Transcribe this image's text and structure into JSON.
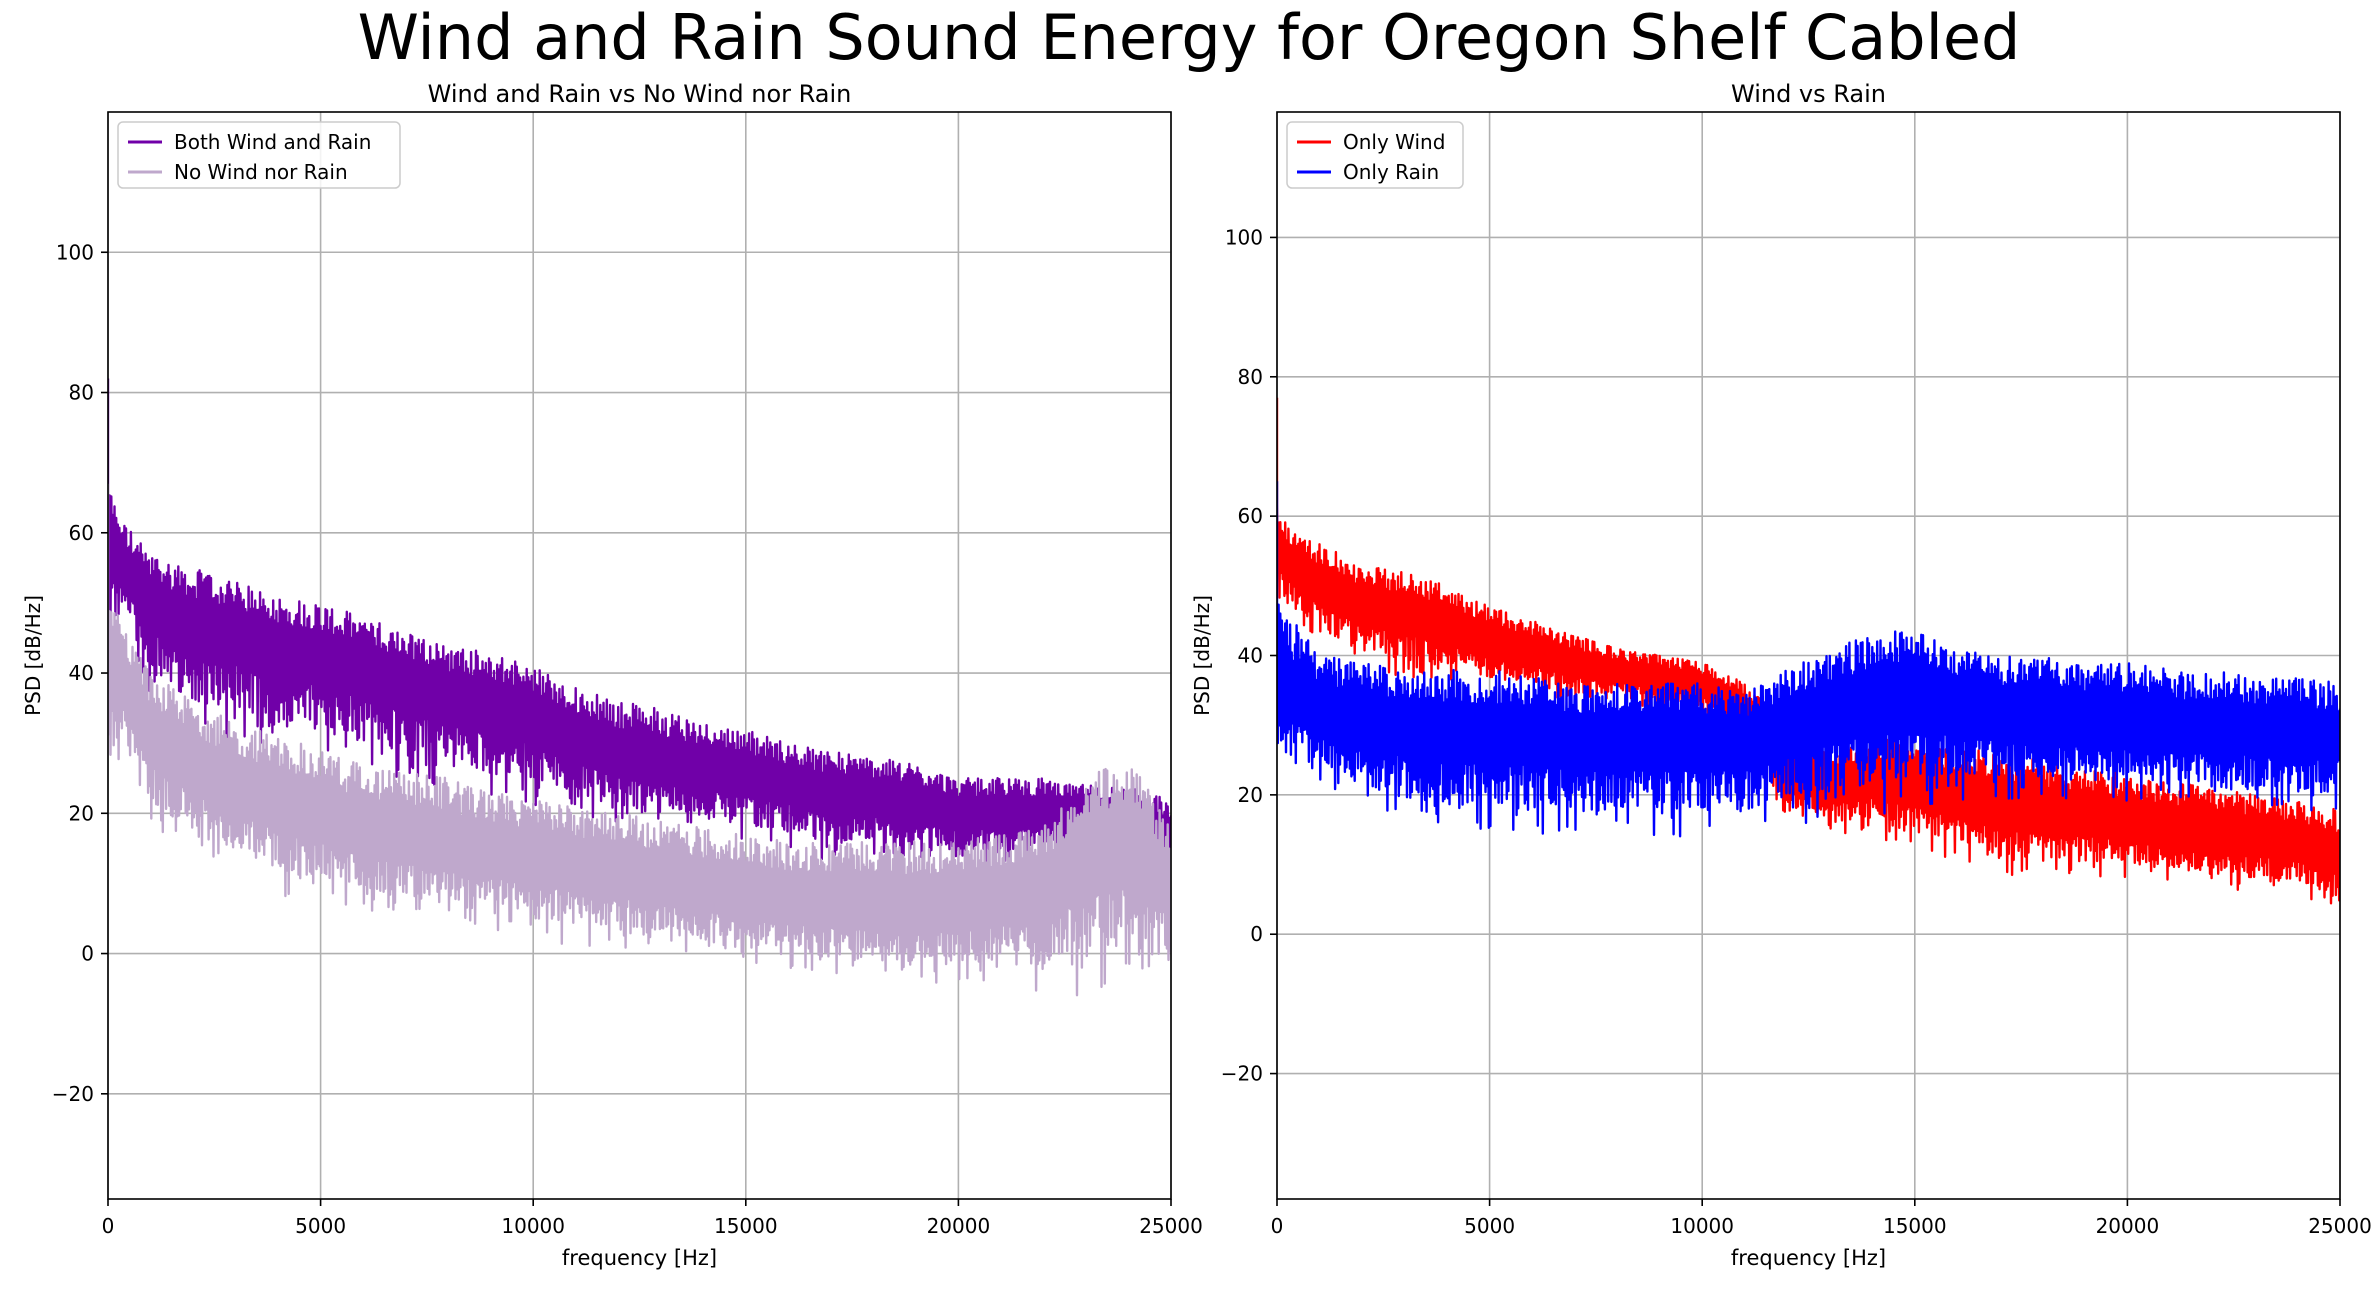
{
  "suptitle": "Wind and Rain Sound Energy for Oregon Shelf Cabled",
  "chart_data": [
    {
      "type": "line",
      "title": "Wind and Rain vs No Wind nor Rain",
      "xlabel": "frequency [Hz]",
      "ylabel": "PSD [dB/Hz]",
      "xlim": [
        0,
        25000
      ],
      "ylim": [
        -35,
        120
      ],
      "xticks": [
        0,
        5000,
        10000,
        15000,
        20000,
        25000
      ],
      "yticks": [
        -20,
        0,
        20,
        40,
        60,
        80,
        100
      ],
      "grid": true,
      "legend_position": "top-left",
      "series": [
        {
          "name": "Both Wind and Rain",
          "color": "#7000a8",
          "x": [
            0,
            300,
            1000,
            2000,
            3000,
            4000,
            5000,
            6000,
            7000,
            8000,
            9000,
            10000,
            11000,
            12000,
            13000,
            14000,
            15000,
            16000,
            17000,
            18000,
            19000,
            20000,
            21000,
            22000,
            23000,
            24000,
            25000
          ],
          "upper": [
            67,
            62,
            57,
            55,
            53,
            51,
            50,
            48,
            46,
            44,
            43,
            41,
            38,
            36,
            35,
            33,
            32,
            30,
            29,
            28,
            27,
            25,
            25,
            25,
            24,
            24,
            22
          ],
          "lower": [
            40,
            45,
            37,
            32,
            30,
            28,
            28,
            26,
            24,
            23,
            22,
            21,
            20,
            18,
            17,
            17,
            16,
            15,
            13,
            14,
            13,
            13,
            13,
            13,
            13,
            10,
            4
          ],
          "mean": [
            60,
            55,
            48,
            45,
            44,
            42,
            41,
            39,
            37,
            35,
            34,
            32,
            29,
            27,
            26,
            25,
            24,
            23,
            21,
            21,
            20,
            19,
            19,
            19,
            19,
            17,
            15
          ]
        },
        {
          "name": "No Wind nor Rain",
          "color": "#bfa8cc",
          "x": [
            0,
            300,
            1000,
            2000,
            3000,
            4000,
            5000,
            6000,
            7000,
            8000,
            9000,
            10000,
            11000,
            12000,
            13000,
            14000,
            15000,
            16000,
            17000,
            18000,
            19000,
            20000,
            21000,
            22000,
            23000,
            24000,
            25000
          ],
          "upper": [
            52,
            48,
            40,
            36,
            33,
            31,
            29,
            27,
            26,
            25,
            23,
            22,
            21,
            20,
            19,
            18,
            17,
            16,
            16,
            16,
            16,
            16,
            17,
            18,
            25,
            28,
            18
          ],
          "lower": [
            20,
            28,
            18,
            14,
            12,
            8,
            8,
            6,
            5,
            4,
            3,
            2,
            1,
            0,
            0,
            -1,
            -2,
            -3,
            -4,
            -4,
            -5,
            -4,
            -4,
            -6,
            -8,
            -4,
            -6
          ],
          "mean": [
            44,
            38,
            30,
            25,
            22,
            20,
            18,
            16,
            15,
            14,
            13,
            12,
            11,
            10,
            9,
            8,
            7,
            6,
            6,
            6,
            5,
            5,
            6,
            7,
            12,
            14,
            8
          ]
        }
      ]
    },
    {
      "type": "line",
      "title": "Wind vs Rain",
      "xlabel": "frequency [Hz]",
      "ylabel": "PSD [dB/Hz]",
      "xlim": [
        0,
        25000
      ],
      "ylim": [
        -38,
        118
      ],
      "xticks": [
        0,
        5000,
        10000,
        15000,
        20000,
        25000
      ],
      "yticks": [
        -20,
        0,
        20,
        40,
        60,
        80,
        100
      ],
      "grid": true,
      "legend_position": "top-left",
      "series": [
        {
          "name": "Only Wind",
          "color": "#ff0000",
          "x": [
            0,
            300,
            1000,
            2000,
            3000,
            4000,
            5000,
            6000,
            7000,
            8000,
            9000,
            10000,
            11000,
            12000,
            13000,
            14000,
            15000,
            16000,
            17000,
            18000,
            19000,
            20000,
            21000,
            22000,
            23000,
            24000,
            25000
          ],
          "upper": [
            62,
            58,
            56,
            53,
            52,
            50,
            47,
            45,
            43,
            41,
            40,
            39,
            36,
            30,
            27,
            28,
            28,
            27,
            26,
            25,
            24,
            23,
            22,
            21,
            20,
            19,
            18
          ],
          "lower": [
            45,
            45,
            42,
            38,
            37,
            36,
            35,
            34,
            33,
            33,
            32,
            31,
            28,
            16,
            14,
            14,
            12,
            10,
            8,
            8,
            8,
            8,
            7,
            6,
            6,
            5,
            3
          ],
          "mean": [
            55,
            52,
            49,
            46,
            45,
            43,
            41,
            40,
            38,
            37,
            36,
            35,
            32,
            23,
            20,
            21,
            20,
            19,
            17,
            16,
            16,
            15,
            14,
            13,
            13,
            12,
            10
          ]
        },
        {
          "name": "Only Rain",
          "color": "#0000ff",
          "x": [
            0,
            300,
            1000,
            2000,
            3000,
            4000,
            5000,
            6000,
            7000,
            8000,
            9000,
            10000,
            11000,
            12000,
            13000,
            14000,
            15000,
            16000,
            17000,
            18000,
            19000,
            20000,
            21000,
            22000,
            23000,
            24000,
            25000
          ],
          "upper": [
            50,
            46,
            40,
            39,
            38,
            38,
            38,
            37,
            36,
            36,
            36,
            36,
            35,
            38,
            41,
            43,
            44,
            42,
            40,
            40,
            39,
            39,
            38,
            38,
            37,
            37,
            36
          ],
          "lower": [
            20,
            25,
            22,
            18,
            16,
            15,
            15,
            14,
            14,
            14,
            14,
            14,
            14,
            15,
            16,
            17,
            18,
            19,
            19,
            19,
            19,
            19,
            18,
            18,
            18,
            18,
            17
          ],
          "mean": [
            33,
            32,
            30,
            29,
            28,
            27,
            27,
            27,
            26,
            26,
            26,
            26,
            26,
            28,
            30,
            32,
            32,
            31,
            30,
            30,
            29,
            29,
            28,
            28,
            28,
            27,
            27
          ]
        }
      ]
    }
  ]
}
